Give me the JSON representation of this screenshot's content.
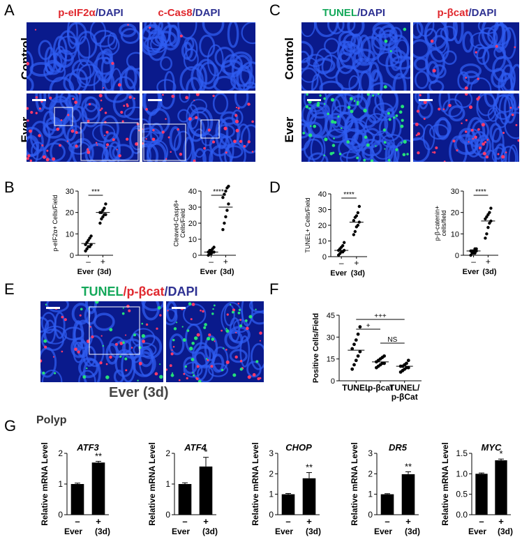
{
  "panels": {
    "A": {
      "letter": "A",
      "header1_a": "p-eIF2α",
      "header1_b": "/DAPI",
      "header2_a": "c-Cas8",
      "header2_b": "/DAPI",
      "row1": "Control",
      "row2": "Ever"
    },
    "B": {
      "letter": "B"
    },
    "C": {
      "letter": "C",
      "header1_a": "TUNEL",
      "header1_b": "/DAPI",
      "header2_a": "p-βcat",
      "header2_b": "/DAPI",
      "row1": "Control",
      "row2": "Ever"
    },
    "D": {
      "letter": "D"
    },
    "E": {
      "letter": "E",
      "header_a": "TUNEL",
      "header_b": "/",
      "header_c": "p-βcat",
      "header_d": "/DAPI",
      "footer": "Ever (3d)"
    },
    "F": {
      "letter": "F"
    },
    "G": {
      "letter": "G",
      "subtitle": "Polyp"
    }
  },
  "colors": {
    "tissue_bg": "#0a1a8c",
    "dapi": "#2f5cf0",
    "red_signal": "#ff3a6a",
    "green_signal": "#25e07a"
  },
  "chart_data": [
    {
      "id": "B1",
      "type": "scatter",
      "ylabel": "p-eIF2α+ Cells/Field",
      "ylim": [
        0,
        30
      ],
      "yticks": [
        0,
        10,
        20,
        30
      ],
      "categories": [
        "–",
        "+"
      ],
      "xlabel": "Ever",
      "xsub": "(3d)",
      "sig": "***",
      "series": [
        {
          "values": [
            [
              2,
              3,
              4,
              4,
              5,
              5,
              6,
              7,
              8,
              9
            ],
            [
              15,
              17,
              18,
              19,
              19,
              20,
              20,
              21,
              22,
              24
            ]
          ],
          "means": [
            5.5,
            20
          ]
        }
      ]
    },
    {
      "id": "B2",
      "type": "scatter",
      "ylabel": "Cleaved-Casp8+ Cells/Field",
      "ylim": [
        0,
        40
      ],
      "yticks": [
        0,
        10,
        20,
        30,
        40
      ],
      "categories": [
        "–",
        "+"
      ],
      "xlabel": "Ever",
      "xsub": "(3d)",
      "sig": "****",
      "series": [
        {
          "values": [
            [
              0,
              1,
              1,
              2,
              2,
              2,
              3,
              3,
              4,
              5
            ],
            [
              16,
              20,
              24,
              28,
              32,
              36,
              38,
              40,
              42,
              43
            ]
          ],
          "means": [
            2,
            30
          ]
        }
      ]
    },
    {
      "id": "D1",
      "type": "scatter",
      "ylabel": "TUNEL+ Cells/Field",
      "ylim": [
        0,
        40
      ],
      "yticks": [
        0,
        10,
        20,
        30,
        40
      ],
      "categories": [
        "–",
        "+"
      ],
      "xlabel": "Ever",
      "xsub": "(3d)",
      "sig": "****",
      "series": [
        {
          "values": [
            [
              1,
              2,
              3,
              3,
              4,
              4,
              5,
              6,
              7,
              9
            ],
            [
              14,
              16,
              19,
              20,
              22,
              23,
              25,
              26,
              28,
              32
            ]
          ],
          "means": [
            4,
            22
          ]
        }
      ]
    },
    {
      "id": "D2",
      "type": "scatter",
      "ylabel": "p-β-catenin+ cells/field",
      "ylim": [
        0,
        30
      ],
      "yticks": [
        0,
        10,
        20,
        30
      ],
      "categories": [
        "–",
        "+"
      ],
      "xlabel": "Ever",
      "xsub": "(3d)",
      "sig": "****",
      "series": [
        {
          "values": [
            [
              0,
              1,
              1,
              1,
              2,
              2,
              2,
              2,
              3,
              3
            ],
            [
              8,
              10,
              13,
              15,
              16,
              17,
              18,
              19,
              20,
              22
            ]
          ],
          "means": [
            2,
            16
          ]
        }
      ]
    },
    {
      "id": "F",
      "type": "scatter",
      "ylabel": "Positive Cells/Field",
      "ylim": [
        0,
        45
      ],
      "yticks": [
        0,
        15,
        30,
        45
      ],
      "categories": [
        "TUNEL",
        "p-βcat",
        "TUNEL/\np-βCat"
      ],
      "series": [
        {
          "values": [
            [
              8,
              11,
              14,
              17,
              20,
              22,
              25,
              28,
              32,
              37
            ],
            [
              9,
              10,
              11,
              12,
              12,
              13,
              14,
              15,
              16,
              17
            ],
            [
              6,
              7,
              8,
              9,
              9,
              10,
              10,
              11,
              12,
              14
            ]
          ],
          "means": [
            21,
            13,
            10
          ]
        }
      ],
      "sigs": [
        {
          "from": 0,
          "to": 1,
          "label": "+"
        },
        {
          "from": 0,
          "to": 2,
          "label": "+++"
        },
        {
          "from": 1,
          "to": 2,
          "label": "NS"
        }
      ]
    },
    {
      "id": "G1",
      "type": "bar",
      "title": "ATF3",
      "ylabel": "Relative mRNA Level",
      "ylim": [
        0,
        2
      ],
      "yticks": [
        0,
        1,
        2
      ],
      "categories": [
        "–",
        "+"
      ],
      "values": [
        1.0,
        1.7
      ],
      "errors": [
        0.03,
        0.04
      ],
      "sig": "**",
      "xlabel": "Ever",
      "xsub": "(3d)"
    },
    {
      "id": "G2",
      "type": "bar",
      "title": "ATF4",
      "ylabel": "Relative mRNA Level",
      "ylim": [
        0,
        2
      ],
      "yticks": [
        0,
        1,
        2
      ],
      "categories": [
        "–",
        "+"
      ],
      "values": [
        1.0,
        1.57
      ],
      "errors": [
        0.04,
        0.3
      ],
      "sig": "*",
      "xlabel": "Ever",
      "xsub": "(3d)"
    },
    {
      "id": "G3",
      "type": "bar",
      "title": "CHOP",
      "ylabel": "Relative mRNA Level",
      "ylim": [
        0,
        3
      ],
      "yticks": [
        0,
        1,
        2,
        3
      ],
      "categories": [
        "–",
        "+"
      ],
      "values": [
        1.0,
        1.78
      ],
      "errors": [
        0.04,
        0.28
      ],
      "sig": "**",
      "xlabel": "Ever",
      "xsub": "(3d)"
    },
    {
      "id": "G4",
      "type": "bar",
      "title": "DR5",
      "ylabel": "Relative mRNA Level",
      "ylim": [
        0,
        3
      ],
      "yticks": [
        0,
        1,
        2,
        3
      ],
      "categories": [
        "–",
        "+"
      ],
      "values": [
        1.0,
        1.98
      ],
      "errors": [
        0.03,
        0.12
      ],
      "sig": "**",
      "xlabel": "Ever",
      "xsub": "(3d)"
    },
    {
      "id": "G5",
      "type": "bar",
      "title": "MYC",
      "ylabel": "Relative mRNA Level",
      "ylim": [
        0,
        1.5
      ],
      "yticks": [
        0,
        0.5,
        1.0,
        1.5
      ],
      "ytickLabels": [
        "0.0",
        "0.5",
        "1.0",
        "1.5"
      ],
      "categories": [
        "–",
        "+"
      ],
      "values": [
        1.0,
        1.33
      ],
      "errors": [
        0.02,
        0.03
      ],
      "sig": "*",
      "xlabel": "Ever",
      "xsub": "(3d)"
    }
  ]
}
